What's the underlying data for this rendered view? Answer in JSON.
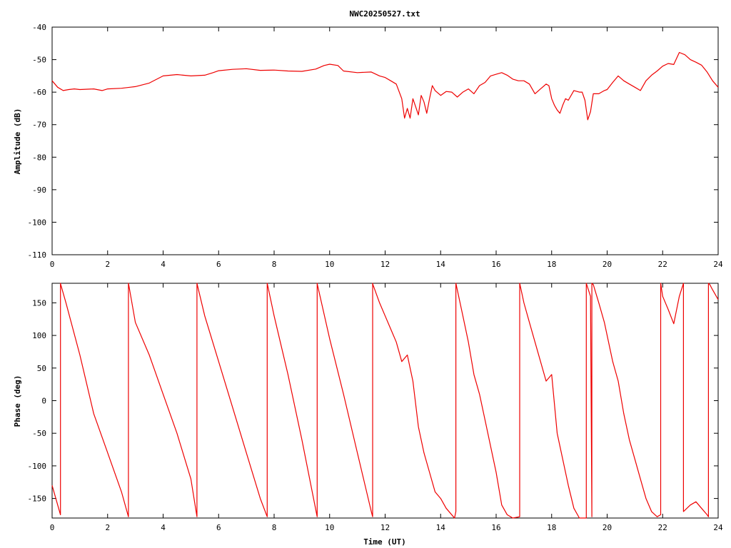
{
  "title": "NWC20250527.txt",
  "colors": {
    "series": "#ee0000",
    "axis": "#000000",
    "grid": "#000000"
  },
  "chart_data": [
    {
      "type": "line",
      "xlabel": "",
      "ylabel": "Amplitude (dB)",
      "xlim": [
        0,
        24
      ],
      "ylim": [
        -110,
        -40
      ],
      "x_ticks": [
        "0",
        "2",
        "4",
        "6",
        "8",
        "10",
        "12",
        "14",
        "16",
        "18",
        "20",
        "22",
        "24"
      ],
      "y_ticks": [
        "-40",
        "-50",
        "-60",
        "-70",
        "-80",
        "-90",
        "-100",
        "-110"
      ],
      "grid": false,
      "series": [
        {
          "x": [
            0,
            0.2,
            0.4,
            0.6,
            0.8,
            1.0,
            1.5,
            1.8,
            2.0,
            2.5,
            2.8,
            3.0,
            3.5,
            4.0,
            4.5,
            5.0,
            5.5,
            5.8,
            6.0,
            6.5,
            7.0,
            7.5,
            8.0,
            8.5,
            9.0,
            9.5,
            9.8,
            10.0,
            10.3,
            10.5,
            11.0,
            11.5,
            11.8,
            12.0,
            12.2,
            12.4,
            12.6,
            12.7,
            12.8,
            12.9,
            13.0,
            13.1,
            13.2,
            13.3,
            13.4,
            13.5,
            13.6,
            13.7,
            13.8,
            14.0,
            14.2,
            14.4,
            14.6,
            14.8,
            15.0,
            15.2,
            15.4,
            15.6,
            15.8,
            16.0,
            16.2,
            16.4,
            16.6,
            16.8,
            17.0,
            17.2,
            17.4,
            17.6,
            17.8,
            17.9,
            18.0,
            18.1,
            18.2,
            18.3,
            18.4,
            18.5,
            18.6,
            18.8,
            19.0,
            19.1,
            19.2,
            19.3,
            19.4,
            19.5,
            19.7,
            19.9,
            20.0,
            20.2,
            20.4,
            20.6,
            20.8,
            21.0,
            21.2,
            21.4,
            21.6,
            21.8,
            22.0,
            22.2,
            22.4,
            22.6,
            22.8,
            23.0,
            23.2,
            23.4,
            23.6,
            23.8,
            24.0
          ],
          "values": [
            -56.5,
            -58.5,
            -59.5,
            -59.2,
            -59,
            -59.2,
            -59,
            -59.5,
            -59,
            -58.8,
            -58.5,
            -58.3,
            -57.2,
            -55,
            -54.6,
            -55,
            -54.8,
            -54,
            -53.4,
            -53,
            -52.8,
            -53.3,
            -53.2,
            -53.5,
            -53.6,
            -52.9,
            -51.8,
            -51.4,
            -51.8,
            -53.5,
            -54,
            -53.8,
            -55,
            -55.5,
            -56.5,
            -57.5,
            -62,
            -68,
            -65,
            -68,
            -62,
            -64.5,
            -67,
            -61,
            -63,
            -66.5,
            -62,
            -58,
            -59.5,
            -61,
            -59.8,
            -60,
            -61.5,
            -60,
            -59,
            -60.5,
            -58,
            -57,
            -55,
            -54.5,
            -54,
            -54.8,
            -56,
            -56.5,
            -56.5,
            -57.5,
            -60.5,
            -59,
            -57.5,
            -58,
            -62,
            -64,
            -65.5,
            -66.5,
            -64,
            -62,
            -62.5,
            -59.5,
            -60,
            -60,
            -62.5,
            -68.5,
            -66,
            -60.5,
            -60.5,
            -59.5,
            -59.2,
            -57,
            -55,
            -56.5,
            -57.5,
            -58.5,
            -59.5,
            -56.5,
            -54.8,
            -53.5,
            -52,
            -51.2,
            -51.5,
            -47.8,
            -48.5,
            -50,
            -50.8,
            -51.7,
            -53.8,
            -56.5,
            -58.5
          ]
        }
      ]
    },
    {
      "type": "line",
      "xlabel": "Time (UT)",
      "ylabel": "Phase (deg)",
      "xlim": [
        0,
        24
      ],
      "ylim": [
        -180,
        180
      ],
      "x_ticks": [
        "0",
        "2",
        "4",
        "6",
        "8",
        "10",
        "12",
        "14",
        "16",
        "18",
        "20",
        "22",
        "24"
      ],
      "y_ticks": [
        "150",
        "100",
        "50",
        "0",
        "-50",
        "-100",
        "-150"
      ],
      "grid": false,
      "series": [
        {
          "x": [
            0,
            0.3,
            0.3,
            0.31,
            0.5,
            1.0,
            1.5,
            2.0,
            2.5,
            2.75,
            2.75,
            2.76,
            3.0,
            3.5,
            4.0,
            4.5,
            5.0,
            5.22,
            5.22,
            5.23,
            5.5,
            6.0,
            6.5,
            7.0,
            7.5,
            7.75,
            7.75,
            7.76,
            8.0,
            8.5,
            9.0,
            9.55,
            9.55,
            9.56,
            10.0,
            10.5,
            11.0,
            11.5,
            11.55,
            11.55,
            11.56,
            11.8,
            12.0,
            12.2,
            12.4,
            12.6,
            12.8,
            13.0,
            13.2,
            13.4,
            13.6,
            13.8,
            14.0,
            14.2,
            14.5,
            14.55,
            14.55,
            14.56,
            14.8,
            15.0,
            15.2,
            15.4,
            15.6,
            16.0,
            16.2,
            16.4,
            16.6,
            16.85,
            16.85,
            16.86,
            17.0,
            17.2,
            17.4,
            17.6,
            17.8,
            18.0,
            18.2,
            18.4,
            18.6,
            18.8,
            19.0,
            19.25,
            19.25,
            19.4,
            19.45,
            19.45,
            19.5,
            19.7,
            19.9,
            20.0,
            20.2,
            20.4,
            20.6,
            20.8,
            21.0,
            21.2,
            21.4,
            21.6,
            21.8,
            21.93,
            21.93,
            22.0,
            22.2,
            22.4,
            22.6,
            22.75,
            22.75,
            23.0,
            23.2,
            23.4,
            23.6,
            23.65,
            23.65,
            23.7,
            23.8,
            24.0
          ],
          "values": [
            -130,
            -175,
            180,
            178,
            150,
            70,
            -20,
            -80,
            -140,
            -178,
            180,
            178,
            120,
            70,
            10,
            -50,
            -120,
            -178,
            180,
            178,
            130,
            60,
            -10,
            -80,
            -150,
            -178,
            180,
            178,
            130,
            40,
            -60,
            -178,
            180,
            178,
            95,
            10,
            -80,
            -170,
            -178,
            180,
            178,
            150,
            130,
            110,
            90,
            60,
            70,
            30,
            -40,
            -80,
            -110,
            -140,
            -150,
            -165,
            -180,
            -170,
            180,
            178,
            130,
            90,
            40,
            10,
            -30,
            -110,
            -160,
            -175,
            -180,
            -178,
            180,
            178,
            150,
            120,
            90,
            60,
            30,
            40,
            -50,
            -90,
            -130,
            -165,
            -180,
            -180,
            180,
            160,
            -178,
            180,
            178,
            150,
            120,
            100,
            60,
            30,
            -20,
            -60,
            -90,
            -120,
            -150,
            -170,
            -178,
            -175,
            180,
            160,
            140,
            118,
            160,
            180,
            -170,
            -160,
            -155,
            -165,
            -175,
            -178,
            180,
            178,
            170,
            155
          ]
        }
      ]
    }
  ]
}
